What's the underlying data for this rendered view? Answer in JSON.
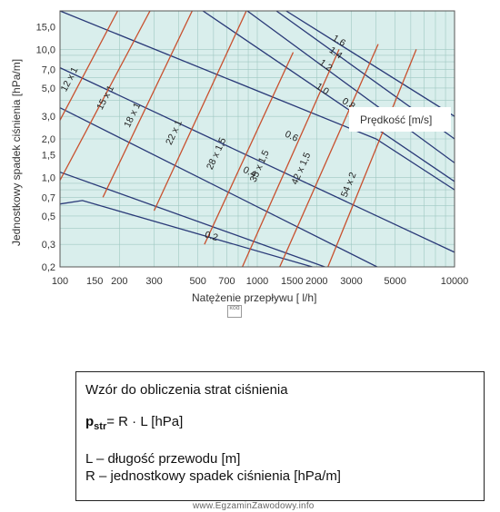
{
  "chart_data": {
    "type": "line",
    "title": "",
    "xlabel": "Natężenie przepływu [ l/h]",
    "ylabel": "Jednostkowy spadek ciśnienia [hPa/m]",
    "x_scale": "log",
    "y_scale": "log",
    "xlim": [
      100,
      10000
    ],
    "ylim": [
      0.2,
      20
    ],
    "x_ticks": [
      100,
      150,
      200,
      300,
      500,
      700,
      1000,
      1500,
      2000,
      3000,
      5000,
      10000
    ],
    "x_tick_labels": [
      "100",
      "150",
      "200",
      "300",
      "500",
      "700",
      "1000",
      "1500",
      "2000",
      "3000",
      "5000",
      "10000"
    ],
    "y_ticks": [
      0.2,
      0.3,
      0.5,
      0.7,
      1.0,
      1.5,
      2.0,
      3.0,
      5.0,
      7.0,
      10.0,
      15.0
    ],
    "y_tick_labels": [
      "0,2",
      "0,3",
      "0,5",
      "0,7",
      "1,0",
      "1,5",
      "2,0",
      "3,0",
      "5,0",
      "7,0",
      "10,0",
      "15,0"
    ],
    "grid": true,
    "background_color": "#d9eeec",
    "grid_color": "#9fc8c2",
    "pipe_color": "#c8502e",
    "velocity_color": "#2a3a78",
    "legend_label": "Prędkość [m/s]",
    "pipe_series": [
      {
        "name": "12 x 1",
        "points": [
          [
            100,
            2.8
          ],
          [
            196,
            20
          ]
        ]
      },
      {
        "name": "15 x 1",
        "points": [
          [
            100,
            0.95
          ],
          [
            286,
            20
          ]
        ]
      },
      {
        "name": "18 x 1",
        "points": [
          [
            165,
            0.7
          ],
          [
            468,
            20
          ]
        ]
      },
      {
        "name": "22 x 1",
        "points": [
          [
            300,
            0.55
          ],
          [
            880,
            20
          ]
        ]
      },
      {
        "name": "28 x 1,5",
        "points": [
          [
            540,
            0.3
          ],
          [
            1520,
            9.5
          ]
        ]
      },
      {
        "name": "35 x 1,5",
        "points": [
          [
            840,
            0.2
          ],
          [
            2600,
            10
          ]
        ]
      },
      {
        "name": "42 x 1,5",
        "points": [
          [
            1300,
            0.2
          ],
          [
            4100,
            11
          ]
        ]
      },
      {
        "name": "54 x 2",
        "points": [
          [
            2280,
            0.2
          ],
          [
            6400,
            10
          ]
        ]
      }
    ],
    "velocity_series": [
      {
        "name": "1.6",
        "points": [
          [
            1400,
            20
          ],
          [
            10000,
            3.0
          ]
        ]
      },
      {
        "name": "1.4",
        "points": [
          [
            1250,
            20
          ],
          [
            10000,
            2.0
          ]
        ]
      },
      {
        "name": "1.2",
        "points": [
          [
            890,
            20
          ],
          [
            10000,
            1.3
          ]
        ]
      },
      {
        "name": "1.0",
        "points": [
          [
            530,
            20
          ],
          [
            10000,
            0.93
          ]
        ]
      },
      {
        "name": "0.8",
        "points": [
          [
            100,
            20
          ],
          [
            4000,
            2.0
          ],
          [
            10000,
            0.8
          ]
        ]
      },
      {
        "name": "0.6",
        "points": [
          [
            100,
            7.2
          ],
          [
            10000,
            0.26
          ]
        ]
      },
      {
        "name": "0.4",
        "points": [
          [
            100,
            3.5
          ],
          [
            4050,
            0.2
          ]
        ]
      },
      {
        "name": "",
        "points": [
          [
            100,
            1.1
          ],
          [
            2200,
            0.2
          ]
        ]
      },
      {
        "name": "0.2",
        "points": [
          [
            100,
            0.62
          ],
          [
            130,
            0.66
          ],
          [
            1900,
            0.2
          ]
        ]
      }
    ],
    "pipe_label_pos": [
      [
        115,
        5.7
      ],
      [
        175,
        4.1
      ],
      [
        240,
        3.0
      ],
      [
        390,
        2.2
      ],
      [
        640,
        1.5
      ],
      [
        1060,
        1.2
      ],
      [
        1720,
        1.15
      ],
      [
        3000,
        0.86
      ]
    ],
    "velocity_label_pos": [
      [
        2550,
        11.2
      ],
      [
        2450,
        9.0
      ],
      [
        2180,
        7.2
      ],
      [
        2100,
        4.7
      ],
      [
        2850,
        3.6
      ],
      [
        1470,
        2.0
      ],
      [
        900,
        1.05
      ],
      [
        0,
        0
      ],
      [
        580,
        0.33
      ]
    ]
  },
  "mini_marker": "kod",
  "formula_box": {
    "title": "Wzór do obliczenia strat ciśnienia",
    "eq_symbol": "p",
    "eq_sub": "str",
    "eq_rest": "= R · L  [hPa]",
    "def_l": "L – długość przewodu [m]",
    "def_r": "R – jednostkowy spadek ciśnienia [hPa/m]"
  },
  "watermark": "www.EgzaminZawodowy.info"
}
